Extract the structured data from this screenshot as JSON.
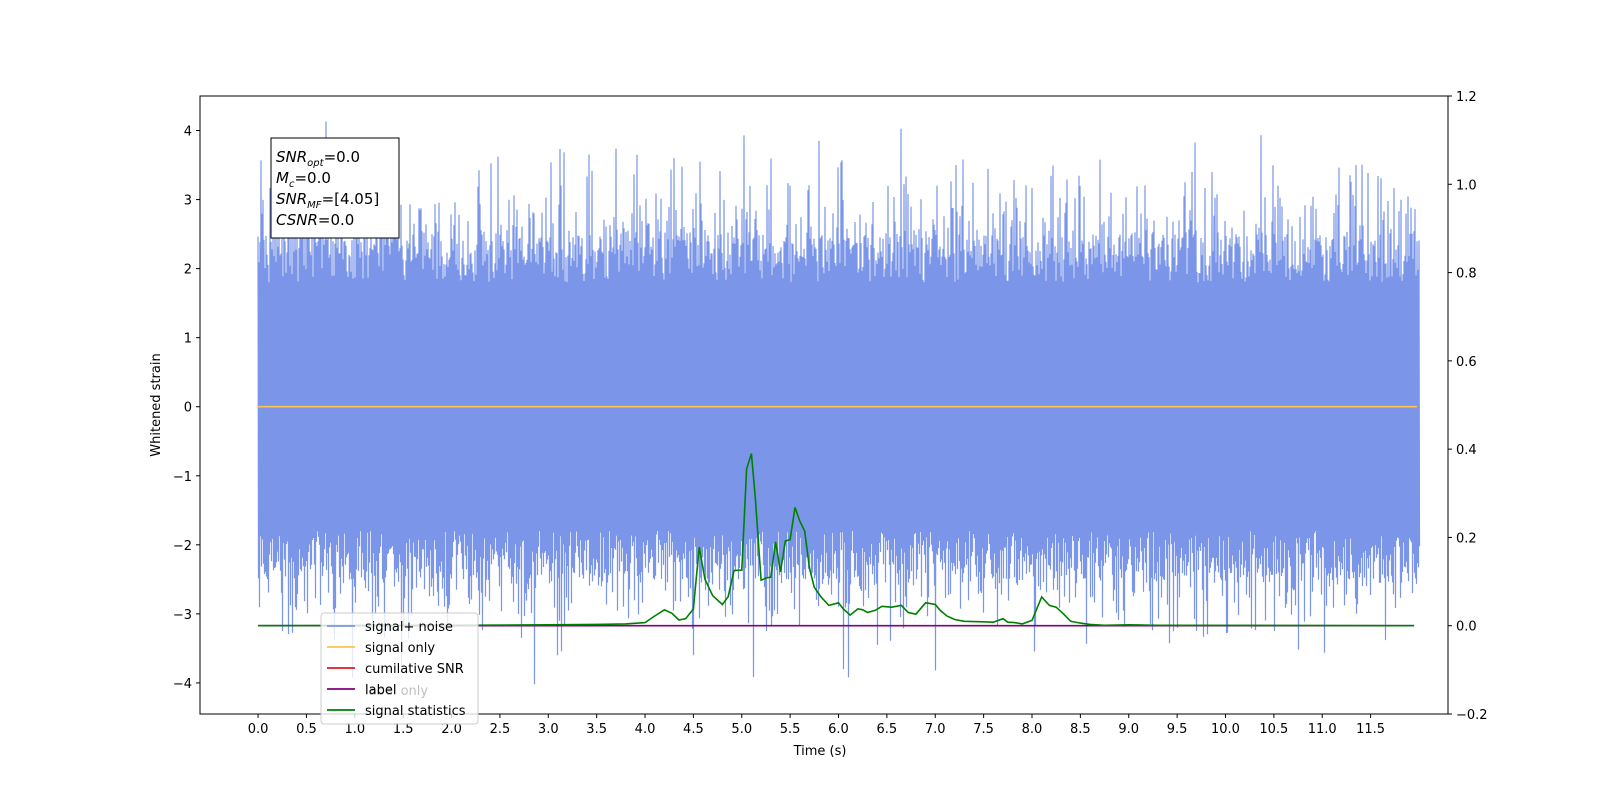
{
  "chart_data": {
    "type": "line",
    "xlabel": "Time (s)",
    "ylabel": "Whitened strain",
    "xlim": [
      -0.6,
      12.3
    ],
    "ylim": [
      -4.45,
      4.5
    ],
    "y2lim": [
      -0.2,
      1.2
    ],
    "x_ticks": [
      "0.0",
      "0.5",
      "1.0",
      "1.5",
      "2.0",
      "2.5",
      "3.0",
      "3.5",
      "4.0",
      "4.5",
      "5.0",
      "5.5",
      "6.0",
      "6.5",
      "7.0",
      "7.5",
      "8.0",
      "8.5",
      "9.0",
      "9.5",
      "10.0",
      "10.5",
      "11.0",
      "11.5"
    ],
    "y_ticks": [
      "4",
      "3",
      "2",
      "1",
      "0",
      "−1",
      "−2",
      "−3",
      "−4"
    ],
    "y2_ticks": [
      "1.2",
      "1.0",
      "0.8",
      "0.6",
      "0.4",
      "0.2",
      "0.0",
      "−0.2"
    ],
    "grid": false,
    "legend_position": "lower-left",
    "legend": [
      {
        "label": "signal+ noise",
        "color": "#7b96e8"
      },
      {
        "label": "signal only",
        "color": "#ffc34d"
      },
      {
        "label": "cumilative SNR",
        "color": "#e41a1c"
      },
      {
        "label": "label",
        "color": "#800080"
      },
      {
        "label": "signal statistics",
        "color": "#008000"
      }
    ],
    "overlapping_legend_text": "label only",
    "annotation": {
      "lines": [
        {
          "base": "SNR",
          "sub": "opt",
          "rest": "=0.0"
        },
        {
          "base": "M",
          "sub": "c",
          "rest": "=0.0"
        },
        {
          "base": "SNR",
          "sub": "MF",
          "rest": "=[4.05]"
        },
        {
          "base": "CSNR",
          "sub": "",
          "rest": "=0.0"
        }
      ]
    },
    "series": [
      {
        "name": "signal+ noise",
        "axis": "left",
        "color": "#7b96e8",
        "sample_rate_hz": 2048,
        "duration_s": 12.0,
        "envelope_y": [
          -2.5,
          2.5
        ],
        "outliers": [
          {
            "x": 0.7,
            "y": 4.13
          },
          {
            "x": 5.02,
            "y": 3.93
          },
          {
            "x": 5.8,
            "y": 3.85
          },
          {
            "x": 4.3,
            "y": 3.6
          },
          {
            "x": 4.57,
            "y": 3.55
          },
          {
            "x": 11.35,
            "y": 3.5
          },
          {
            "x": 9.65,
            "y": 3.4
          },
          {
            "x": 0.25,
            "y": -3.25
          },
          {
            "x": 1.3,
            "y": -3.35
          },
          {
            "x": 1.5,
            "y": -3.2
          },
          {
            "x": 2.85,
            "y": -4.02
          },
          {
            "x": 4.5,
            "y": -3.6
          },
          {
            "x": 5.25,
            "y": -3.25
          },
          {
            "x": 6.05,
            "y": -3.8
          },
          {
            "x": 6.4,
            "y": -3.45
          },
          {
            "x": 7.0,
            "y": -3.82
          },
          {
            "x": 9.5,
            "y": -3.2
          },
          {
            "x": 10.5,
            "y": -3.25
          }
        ]
      },
      {
        "name": "signal only",
        "axis": "left",
        "color": "#ffc34d",
        "x": [
          0.0,
          11.98
        ],
        "y": [
          0.0,
          0.0
        ]
      },
      {
        "name": "label",
        "axis": "right",
        "color": "#800080",
        "x": [
          0.0,
          11.95
        ],
        "y": [
          0.0,
          0.0
        ]
      },
      {
        "name": "signal statistics",
        "axis": "right",
        "color": "#008000",
        "x": [
          0.0,
          2.0,
          3.0,
          3.5,
          3.8,
          4.0,
          4.1,
          4.2,
          4.28,
          4.35,
          4.42,
          4.5,
          4.56,
          4.62,
          4.7,
          4.8,
          4.86,
          4.92,
          5.0,
          5.05,
          5.1,
          5.14,
          5.2,
          5.25,
          5.3,
          5.35,
          5.4,
          5.45,
          5.5,
          5.55,
          5.6,
          5.65,
          5.7,
          5.75,
          5.82,
          5.9,
          6.0,
          6.05,
          6.12,
          6.2,
          6.25,
          6.3,
          6.38,
          6.45,
          6.55,
          6.65,
          6.72,
          6.8,
          6.9,
          6.95,
          7.0,
          7.05,
          7.12,
          7.2,
          7.3,
          7.45,
          7.6,
          7.7,
          7.75,
          7.82,
          7.9,
          8.0,
          8.1,
          8.18,
          8.25,
          8.32,
          8.4,
          8.5,
          8.6,
          8.75,
          9.0,
          9.3,
          11.95
        ],
        "y": [
          0.0,
          0.001,
          0.002,
          0.003,
          0.004,
          0.007,
          0.022,
          0.036,
          0.028,
          0.013,
          0.016,
          0.038,
          0.178,
          0.105,
          0.068,
          0.048,
          0.066,
          0.125,
          0.126,
          0.355,
          0.39,
          0.29,
          0.103,
          0.108,
          0.11,
          0.19,
          0.122,
          0.192,
          0.195,
          0.268,
          0.237,
          0.214,
          0.13,
          0.087,
          0.065,
          0.046,
          0.052,
          0.038,
          0.024,
          0.038,
          0.036,
          0.03,
          0.035,
          0.044,
          0.042,
          0.046,
          0.03,
          0.026,
          0.052,
          0.05,
          0.048,
          0.035,
          0.022,
          0.014,
          0.01,
          0.009,
          0.008,
          0.016,
          0.008,
          0.007,
          0.004,
          0.012,
          0.065,
          0.046,
          0.042,
          0.028,
          0.01,
          0.006,
          0.003,
          0.001,
          0.002,
          0.001,
          0.0
        ]
      }
    ]
  }
}
